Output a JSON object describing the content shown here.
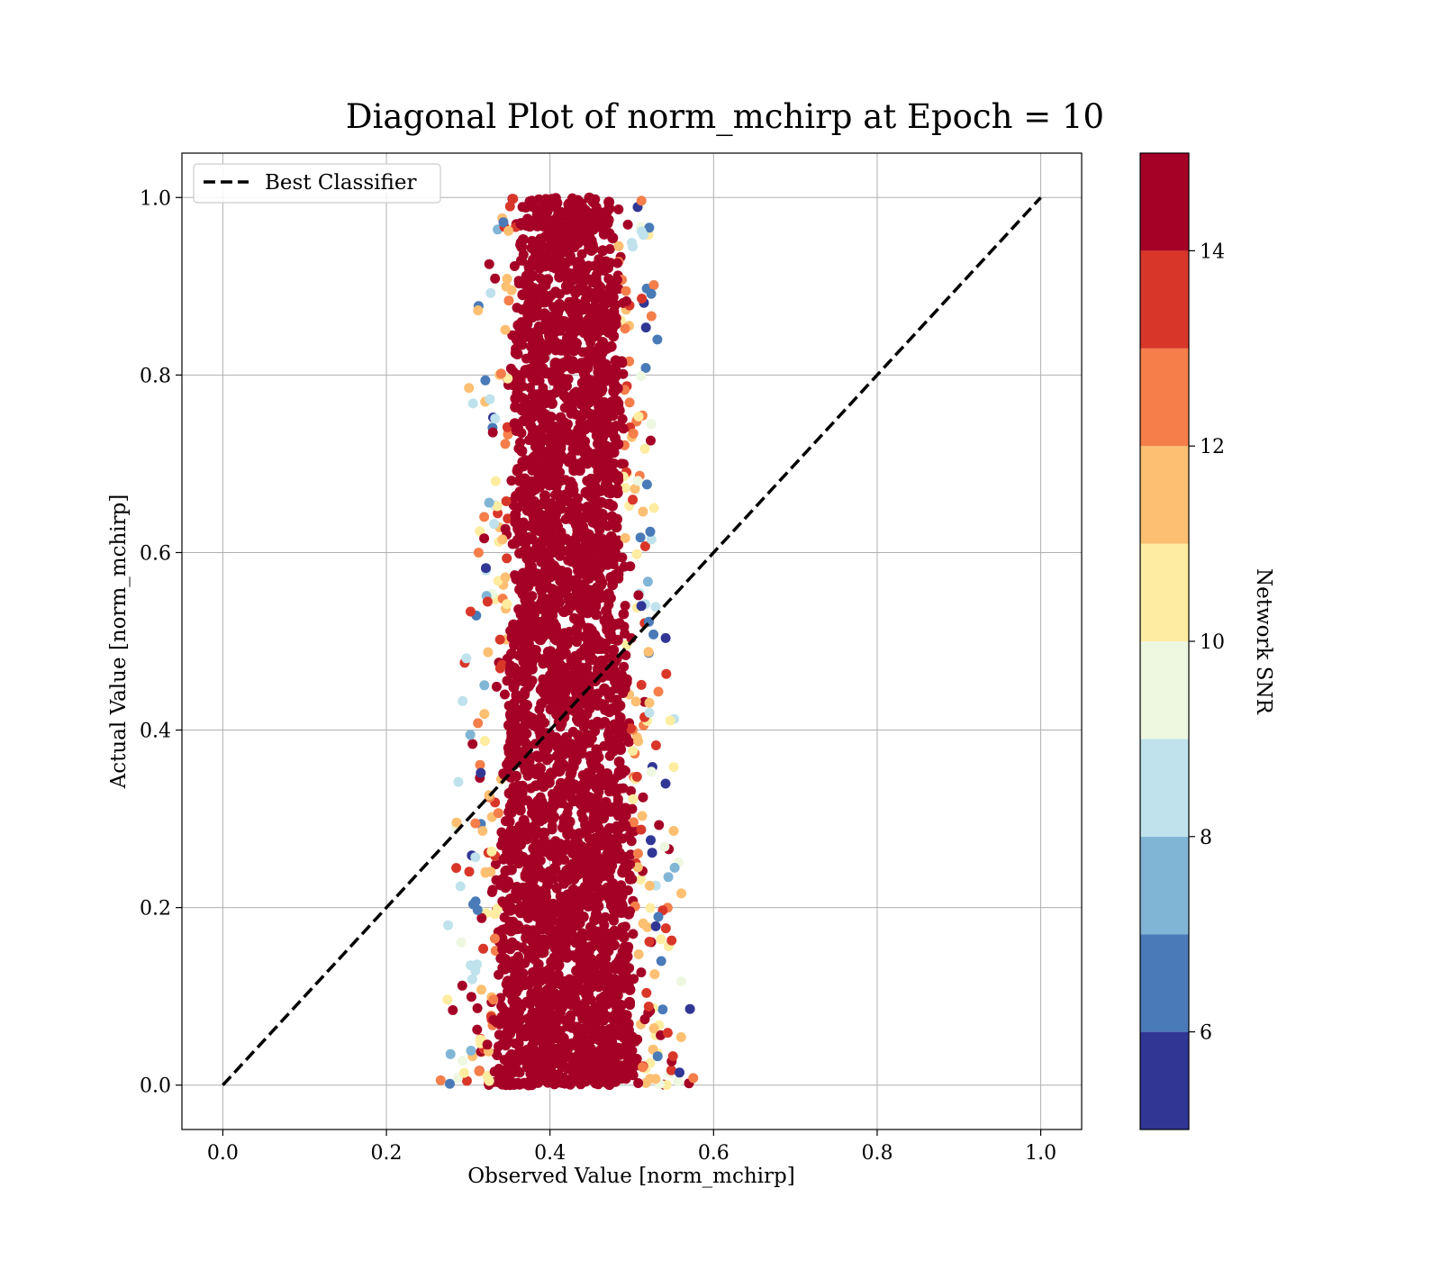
{
  "chart_data": {
    "type": "scatter",
    "title": "Diagonal Plot of norm_mchirp at Epoch = 10",
    "xlabel": "Observed Value [norm_mchirp]",
    "ylabel": "Actual Value [norm_mchirp]",
    "xlim": [
      -0.05,
      1.05
    ],
    "ylim": [
      -0.05,
      1.05
    ],
    "xticks": [
      0.0,
      0.2,
      0.4,
      0.6,
      0.8,
      1.0
    ],
    "yticks": [
      0.0,
      0.2,
      0.4,
      0.6,
      0.8,
      1.0
    ],
    "xtick_labels": [
      "0.0",
      "0.2",
      "0.4",
      "0.6",
      "0.8",
      "1.0"
    ],
    "ytick_labels": [
      "0.0",
      "0.2",
      "0.4",
      "0.6",
      "0.8",
      "1.0"
    ],
    "grid": true,
    "legend": {
      "position": "top-left",
      "entries": [
        {
          "label": "Best Classifier",
          "style": "dashed-line",
          "color": "#000000"
        }
      ]
    },
    "reference_line": {
      "name": "Best Classifier",
      "x": [
        0.0,
        1.0
      ],
      "y": [
        0.0,
        1.0
      ],
      "style": "dashed",
      "color": "#000000"
    },
    "scatter_cloud": {
      "description_points": [
        {
          "y": 0.0,
          "x_min": 0.26,
          "x_max": 0.56,
          "x_center": 0.42
        },
        {
          "y": 0.2,
          "x_min": 0.28,
          "x_max": 0.56,
          "x_center": 0.42
        },
        {
          "y": 0.4,
          "x_min": 0.28,
          "x_max": 0.54,
          "x_center": 0.42
        },
        {
          "y": 0.6,
          "x_min": 0.3,
          "x_max": 0.53,
          "x_center": 0.42
        },
        {
          "y": 0.8,
          "x_min": 0.3,
          "x_max": 0.53,
          "x_center": 0.42
        },
        {
          "y": 1.0,
          "x_min": 0.32,
          "x_max": 0.52,
          "x_center": 0.42
        }
      ],
      "dominant_color_value": 15
    },
    "colorbar": {
      "label": "Network SNR",
      "range": [
        5,
        15
      ],
      "tick_values": [
        6,
        8,
        10,
        12,
        14
      ],
      "tick_labels": [
        "6",
        "8",
        "10",
        "12",
        "14"
      ],
      "bins": [
        {
          "from": 5,
          "to": 6,
          "color": "#313695"
        },
        {
          "from": 6,
          "to": 7,
          "color": "#4a7bb8"
        },
        {
          "from": 7,
          "to": 8,
          "color": "#81b5d6"
        },
        {
          "from": 8,
          "to": 9,
          "color": "#bfe2ec"
        },
        {
          "from": 9,
          "to": 10,
          "color": "#eef7e0"
        },
        {
          "from": 10,
          "to": 11,
          "color": "#feeca0"
        },
        {
          "from": 11,
          "to": 12,
          "color": "#fdbf71"
        },
        {
          "from": 12,
          "to": 13,
          "color": "#f57e4a"
        },
        {
          "from": 13,
          "to": 14,
          "color": "#d9362a"
        },
        {
          "from": 14,
          "to": 15,
          "color": "#a50026"
        }
      ]
    }
  }
}
